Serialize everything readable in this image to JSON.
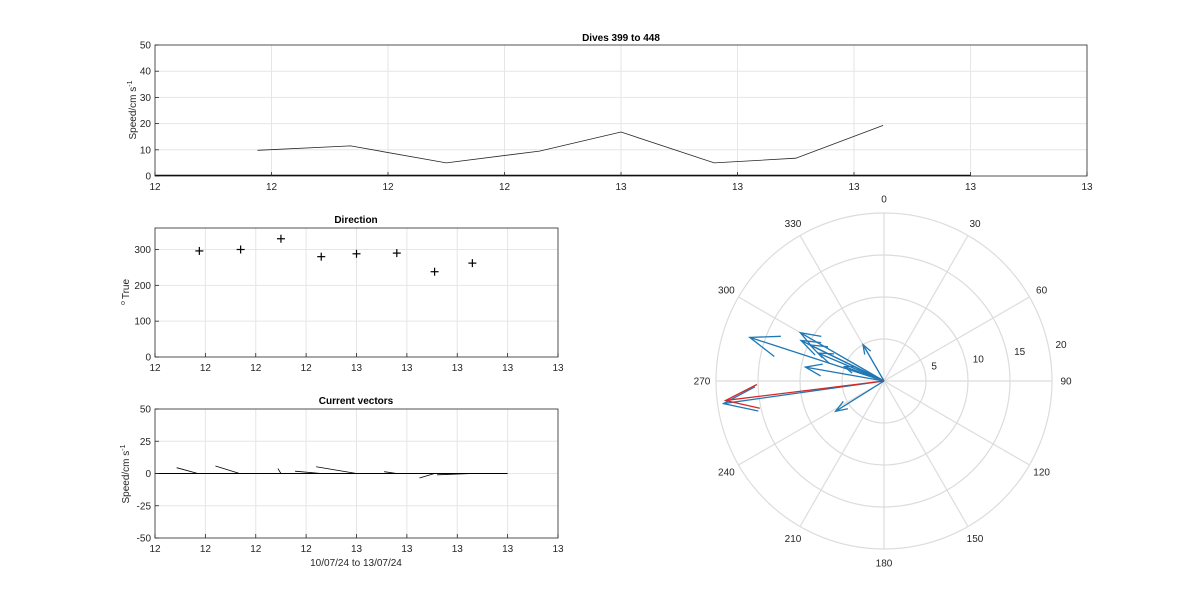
{
  "chart_data": [
    {
      "id": "speed",
      "type": "line",
      "title": "Dives 399 to 448",
      "ylabel": "Speed/cm s",
      "ylabel_sup": "-1",
      "xlabel": "",
      "ylim": [
        0,
        50
      ],
      "yticks": [
        0,
        10,
        20,
        30,
        40,
        50
      ],
      "xlim": [
        0,
        8
      ],
      "xtick_labels": [
        "12",
        "12",
        "12",
        "12",
        "13",
        "13",
        "13",
        "13",
        "13"
      ],
      "grid": true,
      "series": [
        {
          "x": [
            0.88,
            1.68,
            2.5,
            3.3,
            4.0,
            4.8,
            5.5,
            6.25
          ],
          "y": [
            9.8,
            11.5,
            5.0,
            9.5,
            16.8,
            5.0,
            6.8,
            19.3
          ]
        }
      ],
      "baseline": {
        "x": [
          0,
          7.0
        ],
        "y": [
          0,
          0
        ]
      }
    },
    {
      "id": "direction",
      "type": "scatter",
      "title": "Direction",
      "ylabel": "True",
      "ylabel_prefix": "o",
      "xlabel": "",
      "ylim": [
        0,
        360
      ],
      "yticks": [
        0,
        100,
        200,
        300
      ],
      "xlim": [
        0,
        8
      ],
      "xtick_labels": [
        "12",
        "12",
        "12",
        "12",
        "13",
        "13",
        "13",
        "13",
        "13"
      ],
      "grid": true,
      "marker": "+",
      "series": [
        {
          "x": [
            0.88,
            1.7,
            2.5,
            3.3,
            4.0,
            4.8,
            5.55,
            6.3
          ],
          "y": [
            296,
            300,
            330,
            280,
            288,
            290,
            238,
            262
          ]
        }
      ]
    },
    {
      "id": "vectors",
      "type": "line",
      "title": "Current vectors",
      "ylabel": "Speed/cm s",
      "ylabel_sup": "-1",
      "xlabel": "10/07/24 to 13/07/24",
      "ylim": [
        -50,
        50
      ],
      "yticks": [
        -50,
        -25,
        0,
        25,
        50
      ],
      "xlim": [
        0,
        8
      ],
      "xtick_labels": [
        "12",
        "12",
        "12",
        "12",
        "13",
        "13",
        "13",
        "13",
        "13"
      ],
      "grid": true,
      "baseline_x": [
        0,
        7.0
      ],
      "vectors": [
        {
          "x0": 0.85,
          "y0": 0,
          "x1": 0.43,
          "y1": 4.5
        },
        {
          "x0": 1.68,
          "y0": 0,
          "x1": 1.2,
          "y1": 5.8
        },
        {
          "x0": 2.5,
          "y0": 0,
          "x1": 2.44,
          "y1": 3.8
        },
        {
          "x0": 3.3,
          "y0": 0,
          "x1": 2.78,
          "y1": 1.8
        },
        {
          "x0": 4.0,
          "y0": 0,
          "x1": 3.2,
          "y1": 5.2
        },
        {
          "x0": 4.8,
          "y0": 0,
          "x1": 4.55,
          "y1": 1.4
        },
        {
          "x0": 5.55,
          "y0": 0,
          "x1": 5.25,
          "y1": -3.5
        },
        {
          "x0": 6.3,
          "y0": 0,
          "x1": 5.6,
          "y1": -1.0
        }
      ]
    },
    {
      "id": "polar",
      "type": "polar",
      "rlim": [
        0,
        20
      ],
      "rticks": [
        5,
        10,
        15,
        20
      ],
      "theta_labels": [
        "0",
        "30",
        "60",
        "90",
        "120",
        "150",
        "180",
        "210",
        "240",
        "270",
        "300",
        "330"
      ],
      "theta_zero": "top",
      "theta_direction": "clockwise",
      "colors": {
        "vectors": "#1f77b4",
        "mean": "#d62728"
      },
      "vectors": [
        {
          "dir": 296,
          "speed": 9.8
        },
        {
          "dir": 300,
          "speed": 11.5
        },
        {
          "dir": 330,
          "speed": 5.0
        },
        {
          "dir": 280,
          "speed": 9.5
        },
        {
          "dir": 288,
          "speed": 16.8
        },
        {
          "dir": 290,
          "speed": 5.0
        },
        {
          "dir": 238,
          "speed": 6.8
        },
        {
          "dir": 262,
          "speed": 19.3
        },
        {
          "dir": 296,
          "speed": 11.0
        },
        {
          "dir": 293,
          "speed": 8.5
        }
      ],
      "mean_vector": {
        "dir": 263,
        "speed": 19.0
      }
    }
  ]
}
